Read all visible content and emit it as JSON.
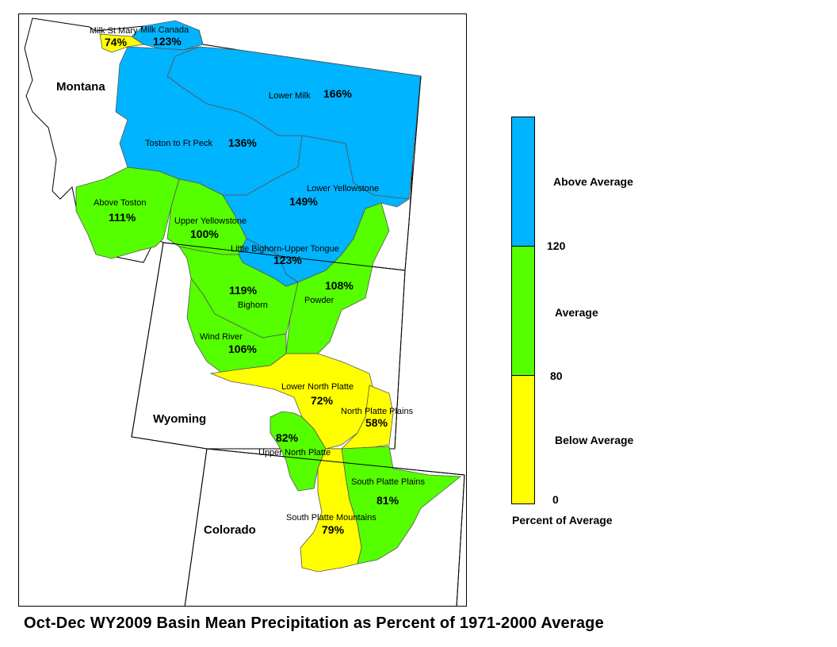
{
  "title": "Oct-Dec WY2009 Basin Mean Precipitation as Percent of 1971-2000 Average",
  "colors": {
    "above": "#00B4FF",
    "average": "#55FF00",
    "below": "#FFFF00",
    "state_line": "#000000"
  },
  "states": {
    "montana": "Montana",
    "wyoming": "Wyoming",
    "colorado": "Colorado"
  },
  "basins": [
    {
      "id": "milk-st-mary",
      "name": "Milk St Mary",
      "pct": "74%",
      "class": "below"
    },
    {
      "id": "milk-canada",
      "name": "Milk Canada",
      "pct": "123%",
      "class": "above"
    },
    {
      "id": "lower-milk",
      "name": "Lower Milk",
      "pct": "166%",
      "class": "above"
    },
    {
      "id": "toston-ft-peck",
      "name": "Toston to Ft Peck",
      "pct": "136%",
      "class": "above"
    },
    {
      "id": "lower-yellowstone",
      "name": "Lower Yellowstone",
      "pct": "149%",
      "class": "above"
    },
    {
      "id": "above-toston",
      "name": "Above Toston",
      "pct": "111%",
      "class": "average"
    },
    {
      "id": "upper-yellowstone",
      "name": "Upper Yellowstone",
      "pct": "100%",
      "class": "average"
    },
    {
      "id": "little-bighorn",
      "name": "Little Bighorn-Upper Tongue",
      "pct": "123%",
      "class": "above"
    },
    {
      "id": "bighorn",
      "name": "Bighorn",
      "pct": "119%",
      "class": "average"
    },
    {
      "id": "powder",
      "name": "Powder",
      "pct": "108%",
      "class": "average"
    },
    {
      "id": "wind-river",
      "name": "Wind River",
      "pct": "106%",
      "class": "average"
    },
    {
      "id": "lower-north-platte",
      "name": "Lower North Platte",
      "pct": "72%",
      "class": "below"
    },
    {
      "id": "north-platte-plains",
      "name": "North Platte Plains",
      "pct": "58%",
      "class": "below"
    },
    {
      "id": "upper-north-platte",
      "name": "Upper North Platte",
      "pct": "82%",
      "class": "average"
    },
    {
      "id": "south-platte-plains",
      "name": "South Platte Plains",
      "pct": "81%",
      "class": "average"
    },
    {
      "id": "south-platte-mountains",
      "name": "South Platte Mountains",
      "pct": "79%",
      "class": "below"
    }
  ],
  "legend": {
    "classes": [
      {
        "label": "Above Average",
        "min": 120,
        "color": "#00B4FF"
      },
      {
        "label": "Average",
        "min": 80,
        "max": 120,
        "color": "#55FF00"
      },
      {
        "label": "Below Average",
        "min": 0,
        "max": 80,
        "color": "#FFFF00"
      }
    ],
    "breaks": [
      "120",
      "80",
      "0"
    ],
    "caption": "Percent of Average"
  }
}
